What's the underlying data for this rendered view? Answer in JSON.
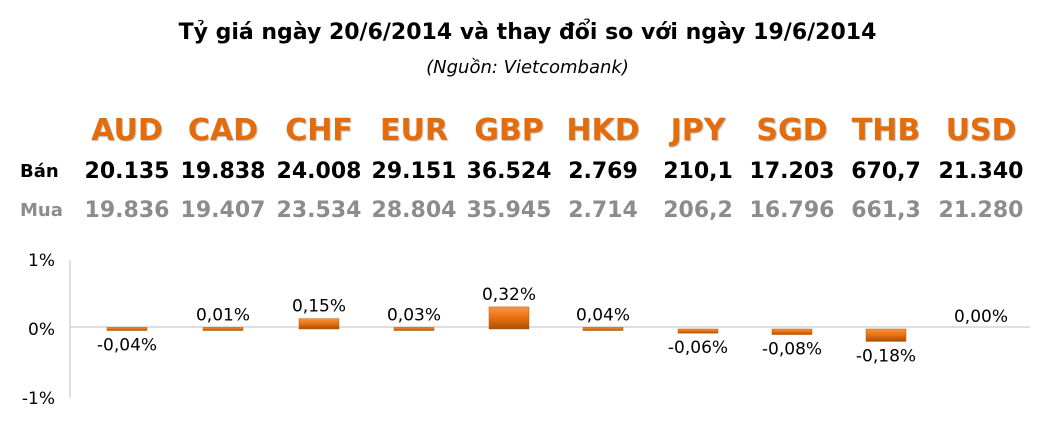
{
  "title": "Tỷ giá ngày 20/6/2014 và thay đổi so với ngày 19/6/2014",
  "subtitle": "(Nguồn: Vietcombank)",
  "rows": {
    "sell_label": "Bán",
    "buy_label": "Mua"
  },
  "colors": {
    "currency": "#e46c0a",
    "bar": "#e46c0a",
    "buy_text": "#8c8c8c"
  },
  "table": {
    "currencies": [
      "AUD",
      "CAD",
      "CHF",
      "EUR",
      "GBP",
      "HKD",
      "JPY",
      "SGD",
      "THB",
      "USD"
    ],
    "sell": [
      "20.135",
      "19.838",
      "24.008",
      "29.151",
      "36.524",
      "2.769",
      "210,1",
      "17.203",
      "670,7",
      "21.340"
    ],
    "buy": [
      "19.836",
      "19.407",
      "23.534",
      "28.804",
      "35.945",
      "2.714",
      "206,2",
      "16.796",
      "661,3",
      "21.280"
    ]
  },
  "chart_data": {
    "type": "bar",
    "categories": [
      "AUD",
      "CAD",
      "CHF",
      "EUR",
      "GBP",
      "HKD",
      "JPY",
      "SGD",
      "THB",
      "USD"
    ],
    "values": [
      -0.04,
      0.01,
      0.15,
      0.03,
      0.32,
      0.04,
      -0.06,
      -0.08,
      -0.18,
      0.0
    ],
    "value_labels": [
      "-0,04%",
      "0,01%",
      "0,15%",
      "0,03%",
      "0,32%",
      "0,04%",
      "-0,06%",
      "-0,08%",
      "-0,18%",
      "0,00%"
    ],
    "ylim": [
      -1,
      1
    ],
    "yticks": [
      "1%",
      "0%",
      "-1%"
    ],
    "ytick_values": [
      1,
      0,
      -1
    ],
    "grid": false,
    "legend": "none"
  }
}
